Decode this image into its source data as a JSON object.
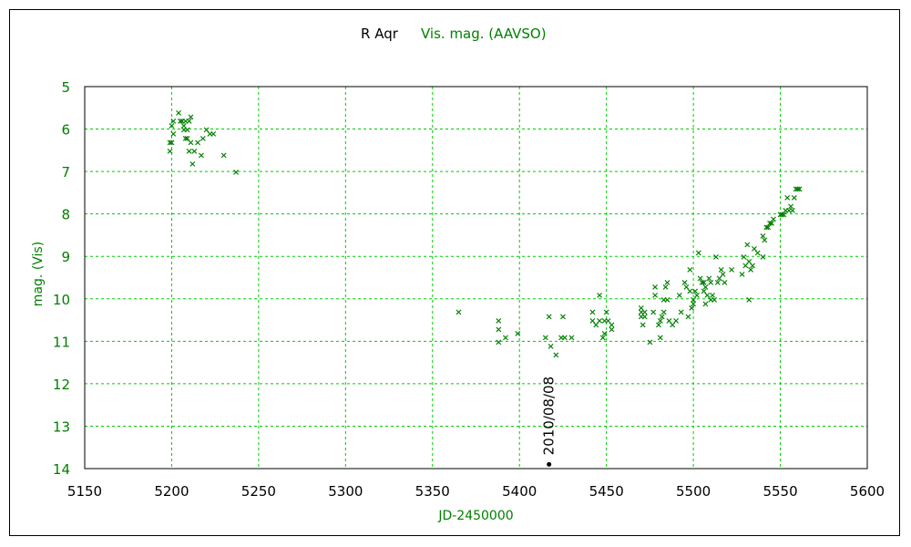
{
  "chart_data": {
    "type": "scatter",
    "title": "R Aqr",
    "series_title": "Vis. mag. (AAVSO)",
    "xlabel": "JD-2450000",
    "ylabel": "mag. (Vis)",
    "xlim": [
      5150,
      5600
    ],
    "ylim": [
      14,
      5
    ],
    "y_inverted": true,
    "grid": true,
    "x_ticks": [
      5150,
      5200,
      5250,
      5300,
      5350,
      5400,
      5450,
      5500,
      5550,
      5600
    ],
    "y_ticks": [
      5,
      6,
      7,
      8,
      9,
      10,
      11,
      12,
      13,
      14
    ],
    "colors": {
      "series": "#008000",
      "grid": "#00cc00",
      "axis": "#000000",
      "marker": "#000000"
    },
    "annotation": {
      "label": "2010/08/08",
      "x": 5417,
      "y": 13.9
    },
    "series": [
      {
        "name": "Vis. mag. (AAVSO)",
        "marker": "x",
        "points": [
          [
            5199,
            6.3
          ],
          [
            5199,
            6.5
          ],
          [
            5200,
            6.3
          ],
          [
            5200,
            5.9
          ],
          [
            5201,
            6.1
          ],
          [
            5201,
            5.8
          ],
          [
            5204,
            5.6
          ],
          [
            5205,
            5.8
          ],
          [
            5206,
            5.8
          ],
          [
            5207,
            6.0
          ],
          [
            5207,
            5.9
          ],
          [
            5208,
            6.2
          ],
          [
            5208,
            5.8
          ],
          [
            5209,
            6.0
          ],
          [
            5209,
            6.2
          ],
          [
            5210,
            6.5
          ],
          [
            5210,
            5.8
          ],
          [
            5211,
            6.3
          ],
          [
            5211,
            5.7
          ],
          [
            5212,
            6.8
          ],
          [
            5213,
            6.5
          ],
          [
            5215,
            6.3
          ],
          [
            5217,
            6.6
          ],
          [
            5218,
            6.2
          ],
          [
            5220,
            6.0
          ],
          [
            5222,
            6.1
          ],
          [
            5224,
            6.1
          ],
          [
            5230,
            6.6
          ],
          [
            5237,
            7.0
          ],
          [
            5365,
            10.3
          ],
          [
            5388,
            10.5
          ],
          [
            5388,
            10.7
          ],
          [
            5388,
            11.0
          ],
          [
            5392,
            10.9
          ],
          [
            5399,
            10.8
          ],
          [
            5415,
            10.9
          ],
          [
            5417,
            10.4
          ],
          [
            5418,
            11.1
          ],
          [
            5421,
            11.3
          ],
          [
            5424,
            10.9
          ],
          [
            5425,
            10.4
          ],
          [
            5426,
            10.9
          ],
          [
            5430,
            10.9
          ],
          [
            5442,
            10.5
          ],
          [
            5442,
            10.3
          ],
          [
            5444,
            10.6
          ],
          [
            5446,
            9.9
          ],
          [
            5446,
            10.5
          ],
          [
            5448,
            10.9
          ],
          [
            5449,
            10.8
          ],
          [
            5449,
            10.5
          ],
          [
            5450,
            10.3
          ],
          [
            5451,
            10.5
          ],
          [
            5453,
            10.6
          ],
          [
            5453,
            10.7
          ],
          [
            5470,
            10.2
          ],
          [
            5470,
            10.4
          ],
          [
            5470,
            10.3
          ],
          [
            5471,
            10.6
          ],
          [
            5472,
            10.4
          ],
          [
            5472,
            10.3
          ],
          [
            5475,
            11.0
          ],
          [
            5477,
            10.3
          ],
          [
            5478,
            9.7
          ],
          [
            5478,
            9.9
          ],
          [
            5480,
            10.6
          ],
          [
            5481,
            10.5
          ],
          [
            5481,
            10.9
          ],
          [
            5482,
            10.4
          ],
          [
            5483,
            10.0
          ],
          [
            5483,
            10.3
          ],
          [
            5484,
            9.7
          ],
          [
            5485,
            9.6
          ],
          [
            5485,
            10.0
          ],
          [
            5486,
            10.5
          ],
          [
            5488,
            10.6
          ],
          [
            5490,
            10.5
          ],
          [
            5492,
            9.9
          ],
          [
            5493,
            10.3
          ],
          [
            5495,
            9.6
          ],
          [
            5496,
            9.7
          ],
          [
            5497,
            10.4
          ],
          [
            5498,
            9.8
          ],
          [
            5498,
            9.3
          ],
          [
            5499,
            10.2
          ],
          [
            5500,
            10.0
          ],
          [
            5500,
            10.1
          ],
          [
            5501,
            9.8
          ],
          [
            5502,
            9.9
          ],
          [
            5503,
            8.9
          ],
          [
            5504,
            9.5
          ],
          [
            5505,
            9.6
          ],
          [
            5506,
            9.8
          ],
          [
            5506,
            9.6
          ],
          [
            5507,
            9.7
          ],
          [
            5507,
            10.1
          ],
          [
            5508,
            9.9
          ],
          [
            5509,
            9.5
          ],
          [
            5510,
            9.6
          ],
          [
            5510,
            10.0
          ],
          [
            5511,
            9.9
          ],
          [
            5512,
            10.0
          ],
          [
            5513,
            9.0
          ],
          [
            5514,
            9.6
          ],
          [
            5515,
            9.5
          ],
          [
            5516,
            9.3
          ],
          [
            5517,
            9.4
          ],
          [
            5518,
            9.6
          ],
          [
            5522,
            9.3
          ],
          [
            5528,
            9.4
          ],
          [
            5529,
            9.0
          ],
          [
            5530,
            9.2
          ],
          [
            5531,
            8.7
          ],
          [
            5532,
            9.1
          ],
          [
            5532,
            10.0
          ],
          [
            5533,
            9.3
          ],
          [
            5534,
            9.2
          ],
          [
            5535,
            8.8
          ],
          [
            5537,
            8.9
          ],
          [
            5540,
            8.5
          ],
          [
            5540,
            9.0
          ],
          [
            5541,
            8.6
          ],
          [
            5542,
            8.3
          ],
          [
            5543,
            8.3
          ],
          [
            5544,
            8.2
          ],
          [
            5545,
            8.2
          ],
          [
            5546,
            8.1
          ],
          [
            5550,
            8.0
          ],
          [
            5551,
            8.0
          ],
          [
            5552,
            8.0
          ],
          [
            5553,
            7.9
          ],
          [
            5554,
            7.6
          ],
          [
            5555,
            7.9
          ],
          [
            5556,
            7.8
          ],
          [
            5557,
            7.9
          ],
          [
            5558,
            7.6
          ],
          [
            5559,
            7.4
          ],
          [
            5560,
            7.4
          ],
          [
            5561,
            7.4
          ]
        ]
      }
    ]
  }
}
